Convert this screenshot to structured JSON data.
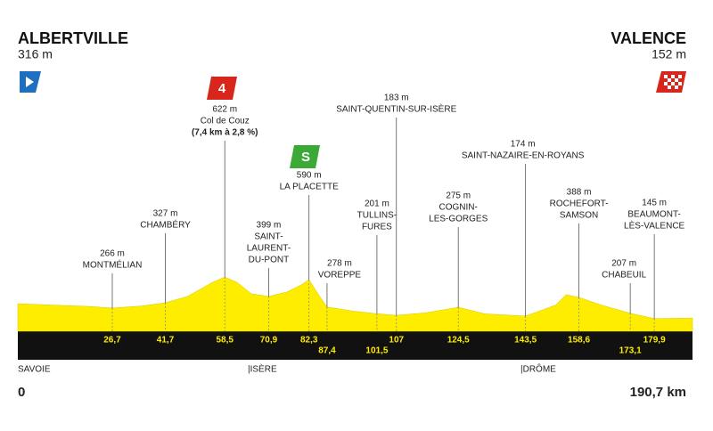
{
  "chart_data": {
    "type": "profile",
    "start": {
      "name": "ALBERTVILLE",
      "altitude": "316 m"
    },
    "finish": {
      "name": "VALENCE",
      "altitude": "152 m"
    },
    "start_km_label": "0",
    "end_km_label": "190,7 km",
    "xlim": [
      0,
      190.7
    ],
    "ylim": [
      0,
      1000
    ],
    "profile": {
      "color": "#ffed00",
      "x": [
        0,
        10,
        20,
        26.7,
        35,
        41.7,
        48,
        55,
        58.5,
        62,
        66,
        70.9,
        76,
        80,
        82.3,
        85,
        87.4,
        95,
        101.5,
        107,
        115,
        124.5,
        132,
        143.5,
        152,
        155,
        158.6,
        165,
        173.1,
        179.9,
        190.7
      ],
      "values": [
        316,
        300,
        285,
        266,
        290,
        327,
        400,
        560,
        622,
        560,
        430,
        399,
        450,
        530,
        590,
        420,
        278,
        230,
        201,
        183,
        210,
        275,
        200,
        174,
        300,
        420,
        388,
        300,
        207,
        145,
        152
      ]
    },
    "waypoints": [
      {
        "km": {
          "value": 26.7,
          "label": "26,7"
        },
        "altitude": "266 m",
        "lines": [
          "MONTMÉLIAN"
        ]
      },
      {
        "km": {
          "value": 41.7,
          "label": "41,7"
        },
        "altitude": "327 m",
        "lines": [
          "CHAMBÉRY"
        ]
      },
      {
        "km": {
          "value": 58.5,
          "label": "58,5"
        },
        "altitude": "622 m",
        "lines": [
          "Col de Couz",
          "(7,4 km à 2,8 %)"
        ]
      },
      {
        "km": {
          "value": 70.9,
          "label": "70,9"
        },
        "altitude": "399 m",
        "lines": [
          "SAINT-",
          "LAURENT-",
          "DU-PONT"
        ]
      },
      {
        "km": {
          "value": 82.3,
          "label": "82,3"
        },
        "altitude": "590 m",
        "lines": [
          "LA PLACETTE"
        ]
      },
      {
        "km": {
          "value": 87.4,
          "label": "87,4"
        },
        "altitude": "278 m",
        "lines": [
          "VOREPPE"
        ]
      },
      {
        "km": {
          "value": 101.5,
          "label": "101,5"
        },
        "altitude": "201 m",
        "lines": [
          "TULLINS-",
          "FURES"
        ]
      },
      {
        "km": 107,
        "altitude": "183 m",
        "lines": [
          "SAINT-QUENTIN-SUR-ISÈRE"
        ]
      },
      {
        "km": {
          "value": 124.5,
          "label": "124,5"
        },
        "altitude": "275 m",
        "lines": [
          "COGNIN-",
          "LES-GORGES"
        ]
      },
      {
        "km": {
          "value": 143.5,
          "label": "143,5"
        },
        "altitude": "174 m",
        "lines": [
          "SAINT-NAZAIRE-EN-ROYANS"
        ]
      },
      {
        "km": {
          "value": 158.6,
          "label": "158,6"
        },
        "altitude": "388 m",
        "lines": [
          "ROCHEFORT-",
          "SAMSON"
        ]
      },
      {
        "km": {
          "value": 173.1,
          "label": "173,1"
        },
        "altitude": "207 m",
        "lines": [
          "CHABEUIL"
        ]
      },
      {
        "km": {
          "value": 179.9,
          "label": "179,9"
        },
        "altitude": "145 m",
        "lines": [
          "BEAUMONT-",
          "LÈS-VALENCE"
        ]
      }
    ],
    "kom_badge": "4",
    "sprint_badge": "S",
    "regions": [
      "SAVOIE",
      "|ISÈRE",
      "|DRÔME"
    ]
  }
}
